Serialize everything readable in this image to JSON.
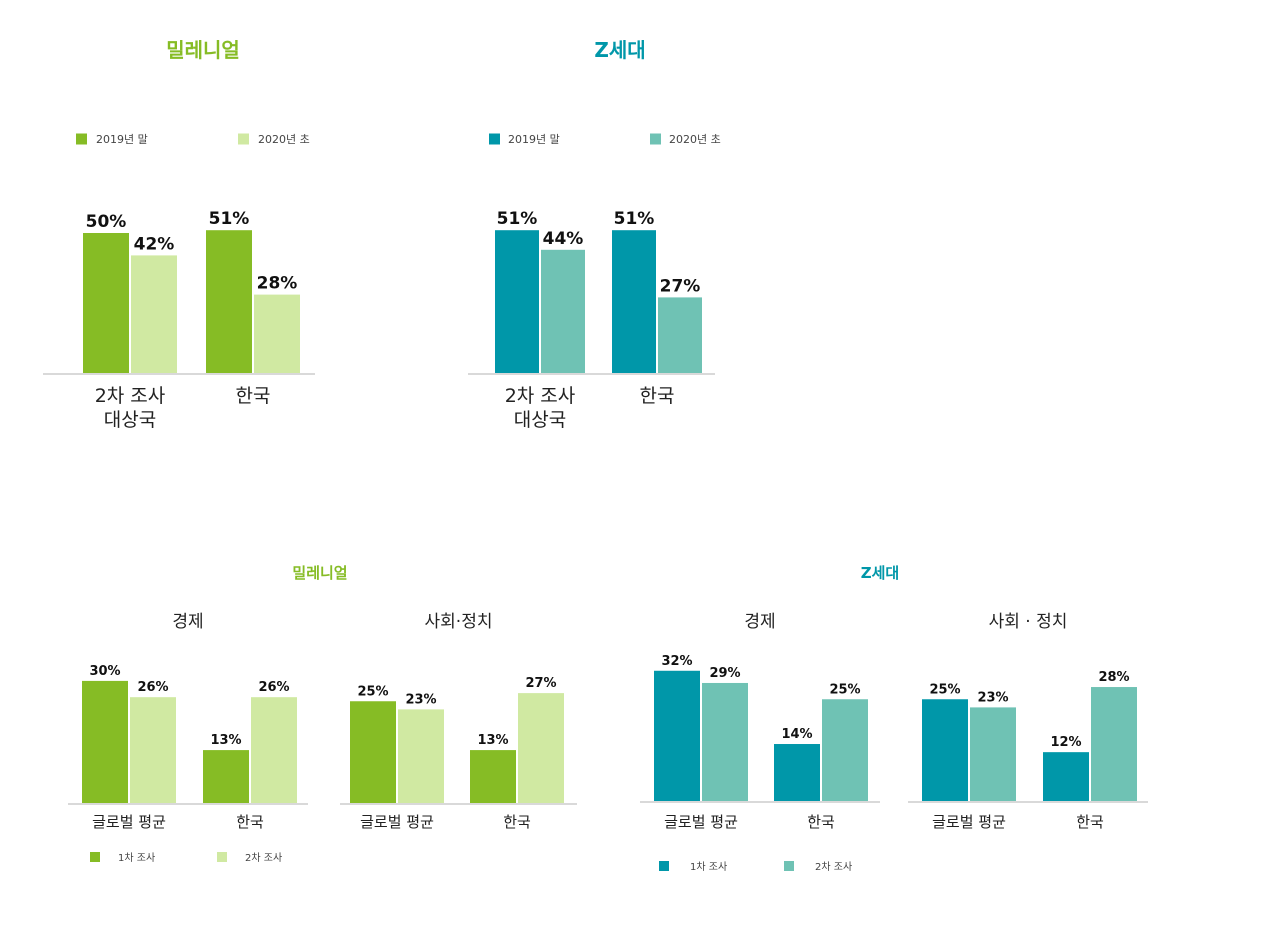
{
  "colors": {
    "millennial_dark": "#86BC25",
    "millennial_light": "#D0E9A2",
    "genz_dark": "#0097A9",
    "genz_light": "#6FC2B4",
    "baseline": "#d9d9d9"
  },
  "top": {
    "millennial_title": "밀레니얼",
    "genz_title": "Z세대"
  },
  "bottom": {
    "millennial_title": "밀레니얼",
    "genz_title": "Z세대"
  },
  "chart_data": [
    {
      "type": "bar",
      "group": "밀레니얼",
      "title": "",
      "categories": [
        "2차 조사\n대상국",
        "한국"
      ],
      "series": [
        {
          "name": "2019년 말",
          "values": [
            50,
            51
          ]
        },
        {
          "name": "2020년 초",
          "values": [
            42,
            28
          ]
        }
      ],
      "value_suffix": "%",
      "legend_position": "top"
    },
    {
      "type": "bar",
      "group": "Z세대",
      "title": "",
      "categories": [
        "2차 조사\n대상국",
        "한국"
      ],
      "series": [
        {
          "name": "2019년 말",
          "values": [
            51,
            51
          ]
        },
        {
          "name": "2020년 초",
          "values": [
            44,
            27
          ]
        }
      ],
      "value_suffix": "%",
      "legend_position": "top"
    },
    {
      "type": "bar",
      "group": "밀레니얼",
      "title": "경제",
      "categories": [
        "글로벌 평균",
        "한국"
      ],
      "series": [
        {
          "name": "1차 조사",
          "values": [
            30,
            13
          ]
        },
        {
          "name": "2차 조사",
          "values": [
            26,
            26
          ]
        }
      ],
      "value_suffix": "%",
      "legend_position": "bottom"
    },
    {
      "type": "bar",
      "group": "밀레니얼",
      "title": "사회·정치",
      "categories": [
        "글로벌 평균",
        "한국"
      ],
      "series": [
        {
          "name": "1차 조사",
          "values": [
            25,
            13
          ]
        },
        {
          "name": "2차 조사",
          "values": [
            23,
            27
          ]
        }
      ],
      "value_suffix": "%",
      "legend_position": "bottom"
    },
    {
      "type": "bar",
      "group": "Z세대",
      "title": "경제",
      "categories": [
        "글로벌 평균",
        "한국"
      ],
      "series": [
        {
          "name": "1차 조사",
          "values": [
            32,
            14
          ]
        },
        {
          "name": "2차 조사",
          "values": [
            29,
            25
          ]
        }
      ],
      "value_suffix": "%",
      "legend_position": "bottom"
    },
    {
      "type": "bar",
      "group": "Z세대",
      "title": "사회 · 정치",
      "categories": [
        "글로벌 평균",
        "한국"
      ],
      "series": [
        {
          "name": "1차 조사",
          "values": [
            25,
            12
          ]
        },
        {
          "name": "2차 조사",
          "values": [
            23,
            28
          ]
        }
      ],
      "value_suffix": "%",
      "legend_position": "bottom"
    }
  ]
}
